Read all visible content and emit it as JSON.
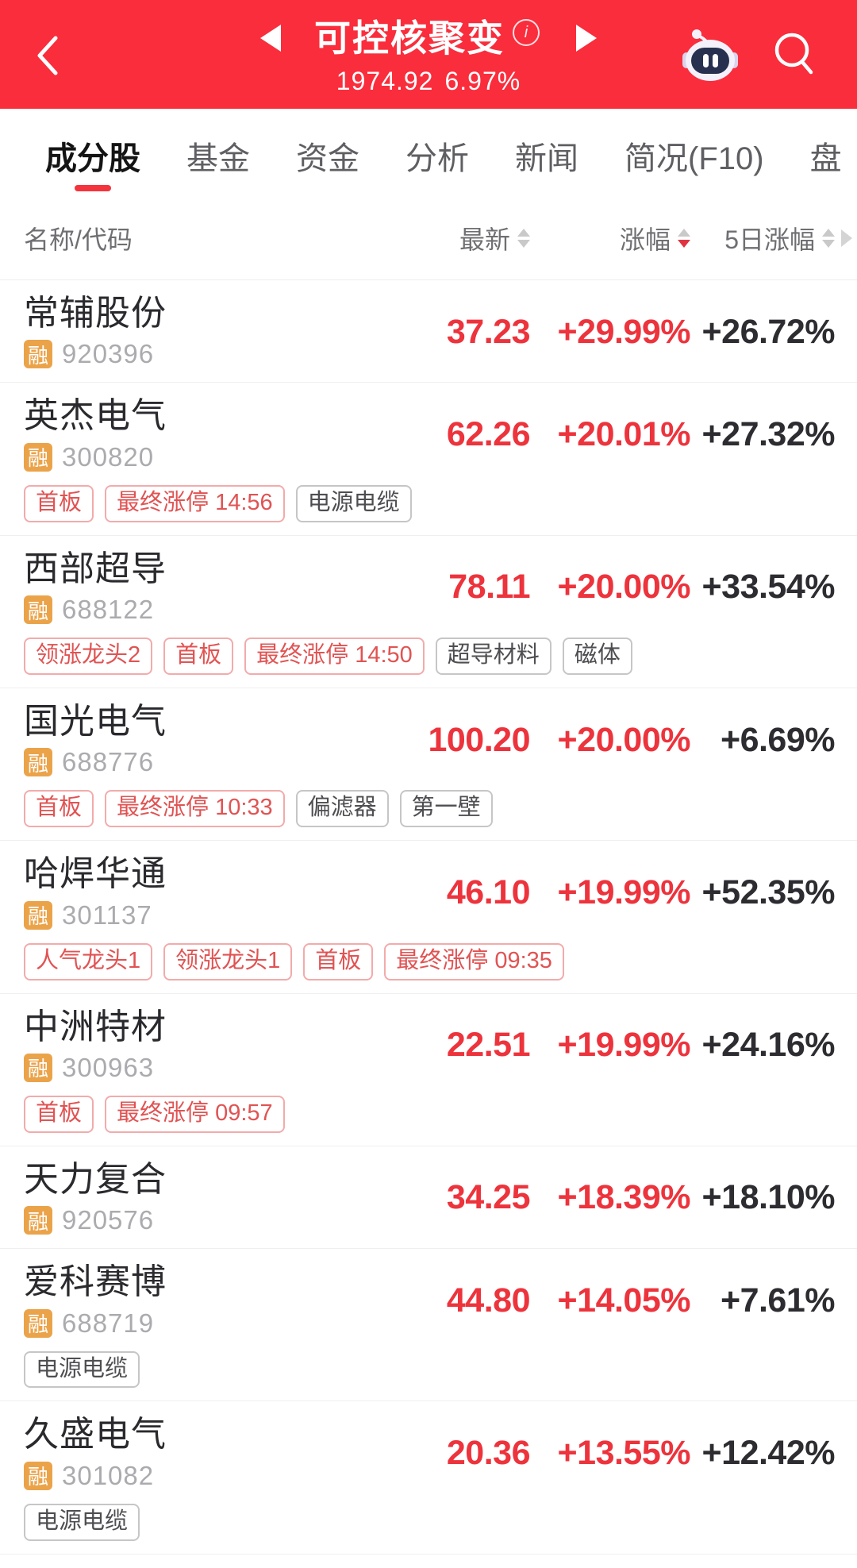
{
  "header": {
    "title": "可控核聚变",
    "index_value": "1974.92",
    "index_change_pct": "6.97%"
  },
  "icons": {
    "back": "back-chevron-icon",
    "info": "info-icon",
    "prev": "prev-triangle-icon",
    "next": "next-triangle-icon",
    "assistant": "robot-assistant-icon",
    "search": "search-icon",
    "more_columns": "more-columns-chevron-icon",
    "sort": "sort-arrows-icon"
  },
  "tabs": [
    {
      "label": "成分股",
      "active": true
    },
    {
      "label": "基金",
      "active": false
    },
    {
      "label": "资金",
      "active": false
    },
    {
      "label": "分析",
      "active": false
    },
    {
      "label": "新闻",
      "active": false
    },
    {
      "label": "简况(F10)",
      "active": false
    },
    {
      "label": "盘",
      "active": false
    }
  ],
  "table": {
    "name_column_label": "名称/代码",
    "sortable_columns": [
      {
        "label": "最新",
        "sort": "none"
      },
      {
        "label": "涨幅",
        "sort": "desc"
      },
      {
        "label": "5日涨幅",
        "sort": "none"
      }
    ],
    "margin_badge": "融",
    "rows": [
      {
        "name": "常辅股份",
        "code": "920396",
        "price": "37.23",
        "change": "+29.99%",
        "change_5d": "+26.72%",
        "tags": []
      },
      {
        "name": "英杰电气",
        "code": "300820",
        "price": "62.26",
        "change": "+20.01%",
        "change_5d": "+27.32%",
        "tags": [
          {
            "text": "首板",
            "type": "red"
          },
          {
            "text": "最终涨停 14:56",
            "type": "red"
          },
          {
            "text": "电源电缆",
            "type": "gray"
          }
        ]
      },
      {
        "name": "西部超导",
        "code": "688122",
        "price": "78.11",
        "change": "+20.00%",
        "change_5d": "+33.54%",
        "tags": [
          {
            "text": "领涨龙头2",
            "type": "red"
          },
          {
            "text": "首板",
            "type": "red"
          },
          {
            "text": "最终涨停 14:50",
            "type": "red"
          },
          {
            "text": "超导材料",
            "type": "gray"
          },
          {
            "text": "磁体",
            "type": "gray"
          }
        ]
      },
      {
        "name": "国光电气",
        "code": "688776",
        "price": "100.20",
        "change": "+20.00%",
        "change_5d": "+6.69%",
        "tags": [
          {
            "text": "首板",
            "type": "red"
          },
          {
            "text": "最终涨停 10:33",
            "type": "red"
          },
          {
            "text": "偏滤器",
            "type": "gray"
          },
          {
            "text": "第一壁",
            "type": "gray"
          }
        ]
      },
      {
        "name": "哈焊华通",
        "code": "301137",
        "price": "46.10",
        "change": "+19.99%",
        "change_5d": "+52.35%",
        "tags": [
          {
            "text": "人气龙头1",
            "type": "red"
          },
          {
            "text": "领涨龙头1",
            "type": "red"
          },
          {
            "text": "首板",
            "type": "red"
          },
          {
            "text": "最终涨停 09:35",
            "type": "red"
          }
        ]
      },
      {
        "name": "中洲特材",
        "code": "300963",
        "price": "22.51",
        "change": "+19.99%",
        "change_5d": "+24.16%",
        "tags": [
          {
            "text": "首板",
            "type": "red"
          },
          {
            "text": "最终涨停 09:57",
            "type": "red"
          }
        ]
      },
      {
        "name": "天力复合",
        "code": "920576",
        "price": "34.25",
        "change": "+18.39%",
        "change_5d": "+18.10%",
        "tags": []
      },
      {
        "name": "爱科赛博",
        "code": "688719",
        "price": "44.80",
        "change": "+14.05%",
        "change_5d": "+7.61%",
        "tags": [
          {
            "text": "电源电缆",
            "type": "gray"
          }
        ]
      },
      {
        "name": "久盛电气",
        "code": "301082",
        "price": "20.36",
        "change": "+13.55%",
        "change_5d": "+12.42%",
        "tags": [
          {
            "text": "电源电缆",
            "type": "gray"
          }
        ]
      }
    ]
  },
  "colors": {
    "header_red": "#FA2D3C",
    "up_red": "#ED333C",
    "dark_value": "#2C2C31",
    "margin_badge_orange": "#EBA34A",
    "active_sort_red": "#E03340",
    "tab_underline_red": "#F4333C"
  }
}
